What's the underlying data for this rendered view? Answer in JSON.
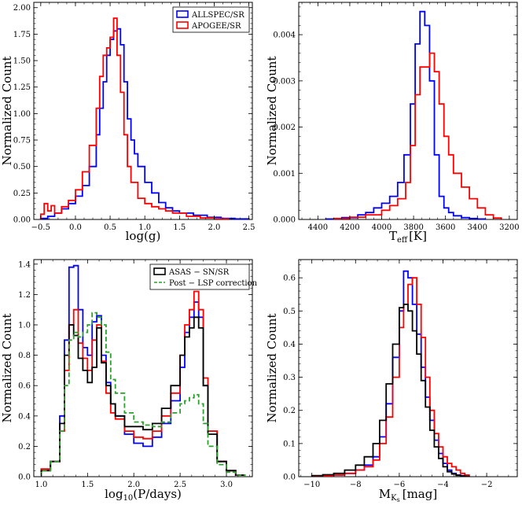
{
  "figure": {
    "panels": [
      {
        "id": "logg",
        "xlabel": "log(g)",
        "ylabel": "Normalized Count"
      },
      {
        "id": "teff",
        "xlabel_main": "T",
        "xlabel_sub": "eff",
        "xlabel_unit": "[K]",
        "ylabel": "Normalized Count"
      },
      {
        "id": "period",
        "xlabel_main": "log",
        "xlabel_sub": "10",
        "xlabel_rest": "(P/days)",
        "ylabel": "Normalized Count"
      },
      {
        "id": "mk",
        "xlabel_main": "M",
        "xlabel_sub": "K",
        "xlabel_subsub": "s",
        "xlabel_unit": "[mag]",
        "ylabel": "Normalized Count"
      }
    ],
    "legends": {
      "logg": [
        "ALLSPEC/SR",
        "APOGEE/SR"
      ],
      "period": [
        "ASAS − SN/SR",
        "Post − LSP correction"
      ]
    }
  },
  "chart_data": [
    {
      "type": "histogram",
      "panel": "logg",
      "xlabel": "log(g)",
      "ylabel": "Normalized Count",
      "xlim": [
        -0.6,
        2.55
      ],
      "ylim": [
        0,
        2.05
      ],
      "xticks": [
        -0.5,
        0.0,
        0.5,
        1.0,
        1.5,
        2.0,
        2.5
      ],
      "xtick_labels": [
        "−0.5",
        "0.0",
        "0.5",
        "1.0",
        "1.5",
        "2.0",
        "2.5"
      ],
      "yticks": [
        0,
        0.25,
        0.5,
        0.75,
        1.0,
        1.25,
        1.5,
        1.75,
        2.0
      ],
      "ytick_labels": [
        "0.00",
        "0.25",
        "0.50",
        "0.75",
        "1.00",
        "1.25",
        "1.50",
        "1.75",
        "2.00"
      ],
      "series": [
        {
          "name": "ALLSPEC/SR",
          "color": "#0000ff",
          "dash": "",
          "x": [
            -0.5,
            -0.4,
            -0.3,
            -0.2,
            -0.1,
            0.0,
            0.1,
            0.2,
            0.3,
            0.35,
            0.4,
            0.45,
            0.5,
            0.55,
            0.6,
            0.65,
            0.7,
            0.75,
            0.8,
            0.85,
            0.9,
            1.0,
            1.1,
            1.2,
            1.3,
            1.4,
            1.5,
            1.7,
            1.9,
            2.1,
            2.3
          ],
          "y": [
            0.01,
            0.03,
            0.06,
            0.1,
            0.15,
            0.22,
            0.32,
            0.5,
            0.8,
            1.05,
            1.3,
            1.55,
            1.7,
            1.78,
            1.8,
            1.65,
            1.3,
            0.95,
            0.75,
            0.62,
            0.5,
            0.35,
            0.25,
            0.16,
            0.11,
            0.08,
            0.06,
            0.04,
            0.02,
            0.01,
            0.005
          ]
        },
        {
          "name": "APOGEE/SR",
          "color": "#ff0000",
          "dash": "",
          "x": [
            -0.5,
            -0.45,
            -0.4,
            -0.35,
            -0.3,
            -0.2,
            -0.1,
            0.0,
            0.1,
            0.2,
            0.3,
            0.35,
            0.4,
            0.45,
            0.5,
            0.55,
            0.6,
            0.65,
            0.7,
            0.75,
            0.8,
            0.9,
            1.0,
            1.1,
            1.2,
            1.3,
            1.4,
            1.6,
            1.8,
            2.0
          ],
          "y": [
            0.05,
            0.15,
            0.08,
            0.13,
            0.06,
            0.12,
            0.18,
            0.28,
            0.45,
            0.7,
            1.05,
            1.35,
            1.55,
            1.62,
            1.72,
            1.9,
            1.55,
            1.2,
            0.8,
            0.5,
            0.35,
            0.2,
            0.15,
            0.12,
            0.1,
            0.08,
            0.06,
            0.03,
            0.015,
            0.005
          ]
        }
      ]
    },
    {
      "type": "histogram",
      "panel": "teff",
      "xlabel": "Teff [K]",
      "ylabel": "Normalized Count",
      "xlim": [
        4520,
        3150
      ],
      "ylim": [
        0,
        0.0047
      ],
      "xticks": [
        4400,
        4200,
        4000,
        3800,
        3600,
        3400,
        3200
      ],
      "xtick_labels": [
        "4400",
        "4200",
        "4000",
        "3800",
        "3600",
        "3400",
        "3200"
      ],
      "yticks": [
        0,
        0.001,
        0.002,
        0.003,
        0.004
      ],
      "ytick_labels": [
        "0.000",
        "0.001",
        "0.002",
        "0.003",
        "0.004"
      ],
      "series": [
        {
          "name": "ALLSPEC/SR",
          "color": "#0000ff",
          "dash": "",
          "x": [
            4350,
            4250,
            4150,
            4100,
            4050,
            4000,
            3950,
            3900,
            3860,
            3820,
            3790,
            3760,
            3730,
            3700,
            3670,
            3640,
            3610,
            3580,
            3550,
            3500,
            3450,
            3400
          ],
          "y": [
            1e-05,
            4e-05,
            0.0001,
            0.00015,
            0.00025,
            0.00035,
            0.0005,
            0.0008,
            0.0014,
            0.0025,
            0.0038,
            0.0045,
            0.0042,
            0.003,
            0.0014,
            0.0005,
            0.00025,
            0.00015,
            8e-05,
            4e-05,
            2e-05,
            1e-05
          ]
        },
        {
          "name": "APOGEE/SR",
          "color": "#ff0000",
          "dash": "",
          "x": [
            4300,
            4200,
            4100,
            4000,
            3950,
            3900,
            3850,
            3820,
            3790,
            3760,
            3730,
            3700,
            3670,
            3640,
            3610,
            3580,
            3550,
            3500,
            3450,
            3400,
            3350,
            3300
          ],
          "y": [
            2e-05,
            5e-05,
            0.0001,
            0.0002,
            0.0003,
            0.00045,
            0.0008,
            0.0016,
            0.0027,
            0.0033,
            0.0033,
            0.0036,
            0.0032,
            0.0025,
            0.0018,
            0.0014,
            0.001,
            0.0007,
            0.00045,
            0.00025,
            0.0001,
            3e-05
          ]
        }
      ]
    },
    {
      "type": "histogram",
      "panel": "period",
      "xlabel": "log10(P/days)",
      "ylabel": "Normalized Count",
      "xlim": [
        0.92,
        3.28
      ],
      "ylim": [
        0,
        1.43
      ],
      "xticks": [
        1.0,
        1.5,
        2.0,
        2.5,
        3.0
      ],
      "xtick_labels": [
        "1.0",
        "1.5",
        "2.0",
        "2.5",
        "3.0"
      ],
      "yticks": [
        0,
        0.2,
        0.4,
        0.6,
        0.8,
        1.0,
        1.2,
        1.4
      ],
      "ytick_labels": [
        "0.0",
        "0.2",
        "0.4",
        "0.6",
        "0.8",
        "1.0",
        "1.2",
        "1.4"
      ],
      "series": [
        {
          "name": "blue",
          "color": "#0000ff",
          "dash": "",
          "x": [
            1.0,
            1.1,
            1.2,
            1.25,
            1.3,
            1.35,
            1.4,
            1.45,
            1.5,
            1.55,
            1.6,
            1.65,
            1.7,
            1.75,
            1.8,
            1.9,
            2.0,
            2.1,
            2.2,
            2.3,
            2.4,
            2.5,
            2.55,
            2.6,
            2.65,
            2.7,
            2.75,
            2.8,
            2.9,
            3.0,
            3.1
          ],
          "y": [
            0.05,
            0.1,
            0.4,
            0.9,
            1.38,
            1.39,
            1.1,
            0.85,
            0.8,
            1.02,
            1.06,
            0.8,
            0.62,
            0.48,
            0.4,
            0.28,
            0.22,
            0.2,
            0.26,
            0.35,
            0.5,
            0.72,
            0.95,
            1.05,
            1.15,
            1.05,
            0.6,
            0.3,
            0.1,
            0.04,
            0.01
          ]
        },
        {
          "name": "red",
          "color": "#ff0000",
          "dash": "",
          "x": [
            1.0,
            1.1,
            1.2,
            1.25,
            1.3,
            1.35,
            1.4,
            1.45,
            1.5,
            1.55,
            1.6,
            1.65,
            1.7,
            1.75,
            1.8,
            1.9,
            2.0,
            2.1,
            2.2,
            2.3,
            2.4,
            2.5,
            2.55,
            2.6,
            2.65,
            2.7,
            2.75,
            2.8,
            2.9,
            3.0,
            3.1
          ],
          "y": [
            0.05,
            0.1,
            0.3,
            0.7,
            1.0,
            1.1,
            0.88,
            0.78,
            0.7,
            0.9,
            1.0,
            0.76,
            0.55,
            0.42,
            0.38,
            0.3,
            0.26,
            0.25,
            0.3,
            0.4,
            0.55,
            0.8,
            1.0,
            1.1,
            1.22,
            1.1,
            0.65,
            0.3,
            0.1,
            0.04,
            0.01
          ]
        },
        {
          "name": "ASAS − SN/SR",
          "color": "#000000",
          "dash": "",
          "x": [
            1.0,
            1.1,
            1.2,
            1.25,
            1.3,
            1.35,
            1.4,
            1.45,
            1.5,
            1.55,
            1.6,
            1.65,
            1.7,
            1.75,
            1.8,
            1.9,
            2.0,
            2.1,
            2.2,
            2.3,
            2.4,
            2.5,
            2.55,
            2.6,
            2.65,
            2.7,
            2.75,
            2.8,
            2.9,
            3.0,
            3.1
          ],
          "y": [
            0.04,
            0.1,
            0.35,
            0.8,
            1.0,
            0.93,
            0.78,
            0.7,
            0.62,
            0.72,
            0.98,
            0.75,
            0.6,
            0.48,
            0.4,
            0.33,
            0.33,
            0.31,
            0.35,
            0.45,
            0.6,
            0.8,
            0.92,
            0.98,
            1.05,
            0.98,
            0.6,
            0.28,
            0.1,
            0.04,
            0.01
          ]
        },
        {
          "name": "Post − LSP correction",
          "color": "#2ca02c",
          "dash": "6,3",
          "x": [
            1.0,
            1.1,
            1.2,
            1.25,
            1.3,
            1.35,
            1.4,
            1.45,
            1.5,
            1.55,
            1.6,
            1.65,
            1.7,
            1.75,
            1.8,
            1.9,
            2.0,
            2.1,
            2.2,
            2.3,
            2.4,
            2.5,
            2.55,
            2.6,
            2.65,
            2.7,
            2.75,
            2.8,
            2.9,
            3.0,
            3.1
          ],
          "y": [
            0.04,
            0.1,
            0.3,
            0.6,
            0.9,
            0.95,
            0.92,
            0.95,
            1.0,
            1.08,
            1.05,
            1.0,
            0.82,
            0.64,
            0.55,
            0.42,
            0.36,
            0.34,
            0.33,
            0.36,
            0.42,
            0.48,
            0.5,
            0.52,
            0.54,
            0.48,
            0.35,
            0.2,
            0.08,
            0.03,
            0.01
          ]
        }
      ]
    },
    {
      "type": "histogram",
      "panel": "mk",
      "xlabel": "MKs [mag]",
      "ylabel": "Normalized Count",
      "xlim": [
        -10.6,
        -0.6
      ],
      "ylim": [
        0,
        0.655
      ],
      "xticks": [
        -10,
        -8,
        -6,
        -4,
        -2
      ],
      "xtick_labels": [
        "−10",
        "−8",
        "−6",
        "−4",
        "−2"
      ],
      "yticks": [
        0,
        0.1,
        0.2,
        0.3,
        0.4,
        0.5,
        0.6
      ],
      "ytick_labels": [
        "0.0",
        "0.1",
        "0.2",
        "0.3",
        "0.4",
        "0.5",
        "0.6"
      ],
      "series": [
        {
          "name": "blue",
          "color": "#0000ff",
          "dash": "",
          "x": [
            -10.0,
            -9.5,
            -9.0,
            -8.5,
            -8.0,
            -7.6,
            -7.2,
            -6.9,
            -6.6,
            -6.3,
            -6.0,
            -5.8,
            -5.6,
            -5.4,
            -5.2,
            -5.0,
            -4.8,
            -4.6,
            -4.4,
            -4.2,
            -4.0,
            -3.8,
            -3.6,
            -3.4,
            -3.2,
            -3.0
          ],
          "y": [
            0.0,
            0.002,
            0.005,
            0.01,
            0.02,
            0.035,
            0.06,
            0.12,
            0.22,
            0.36,
            0.5,
            0.62,
            0.6,
            0.52,
            0.43,
            0.33,
            0.24,
            0.17,
            0.11,
            0.07,
            0.04,
            0.02,
            0.01,
            0.005,
            0.003,
            0.001
          ]
        },
        {
          "name": "red",
          "color": "#ff0000",
          "dash": "",
          "x": [
            -10.0,
            -9.5,
            -9.0,
            -8.5,
            -8.0,
            -7.6,
            -7.2,
            -6.9,
            -6.6,
            -6.3,
            -6.0,
            -5.8,
            -5.6,
            -5.4,
            -5.2,
            -5.0,
            -4.8,
            -4.6,
            -4.4,
            -4.2,
            -4.0,
            -3.8,
            -3.6,
            -3.4,
            -3.2,
            -3.0
          ],
          "y": [
            0.0,
            0.002,
            0.005,
            0.01,
            0.02,
            0.03,
            0.05,
            0.1,
            0.18,
            0.3,
            0.45,
            0.52,
            0.58,
            0.6,
            0.52,
            0.42,
            0.3,
            0.2,
            0.13,
            0.09,
            0.06,
            0.04,
            0.03,
            0.02,
            0.01,
            0.005
          ]
        },
        {
          "name": "black",
          "color": "#000000",
          "dash": "",
          "x": [
            -10.0,
            -9.5,
            -9.0,
            -8.5,
            -8.0,
            -7.6,
            -7.2,
            -6.9,
            -6.6,
            -6.3,
            -6.0,
            -5.8,
            -5.6,
            -5.4,
            -5.2,
            -5.0,
            -4.8,
            -4.6,
            -4.4,
            -4.2,
            -4.0,
            -3.8,
            -3.6,
            -3.4,
            -3.2,
            -3.0
          ],
          "y": [
            0.003,
            0.006,
            0.01,
            0.02,
            0.035,
            0.06,
            0.1,
            0.17,
            0.28,
            0.4,
            0.51,
            0.52,
            0.5,
            0.44,
            0.37,
            0.29,
            0.21,
            0.14,
            0.09,
            0.055,
            0.03,
            0.015,
            0.008,
            0.004,
            0.002,
            0.001
          ]
        }
      ]
    }
  ]
}
